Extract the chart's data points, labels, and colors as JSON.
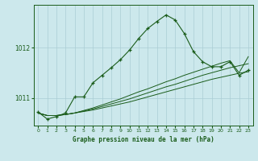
{
  "title": "Graphe pression niveau de la mer (hPa)",
  "bg_color": "#cce8ec",
  "grid_color": "#aacdd4",
  "line_color": "#1a5c1a",
  "x_ticks": [
    0,
    1,
    2,
    3,
    4,
    5,
    6,
    7,
    8,
    9,
    10,
    11,
    12,
    13,
    14,
    15,
    16,
    17,
    18,
    19,
    20,
    21,
    22,
    23
  ],
  "y_ticks": [
    1011,
    1012
  ],
  "ylim": [
    1010.45,
    1012.85
  ],
  "xlim": [
    -0.5,
    23.5
  ],
  "main_line": [
    1010.72,
    1010.58,
    1010.63,
    1010.7,
    1011.02,
    1011.02,
    1011.3,
    1011.45,
    1011.6,
    1011.76,
    1011.95,
    1012.18,
    1012.38,
    1012.52,
    1012.65,
    1012.55,
    1012.28,
    1011.92,
    1011.72,
    1011.62,
    1011.62,
    1011.72,
    1011.45,
    1011.55
  ],
  "flat1": [
    1010.7,
    1010.65,
    1010.65,
    1010.67,
    1010.7,
    1010.73,
    1010.76,
    1010.8,
    1010.84,
    1010.88,
    1010.92,
    1010.97,
    1011.02,
    1011.07,
    1011.12,
    1011.17,
    1011.22,
    1011.27,
    1011.32,
    1011.37,
    1011.41,
    1011.45,
    1011.49,
    1011.52
  ],
  "flat2": [
    1010.7,
    1010.65,
    1010.65,
    1010.67,
    1010.7,
    1010.74,
    1010.78,
    1010.83,
    1010.88,
    1010.93,
    1010.98,
    1011.04,
    1011.1,
    1011.16,
    1011.22,
    1011.27,
    1011.33,
    1011.39,
    1011.45,
    1011.5,
    1011.55,
    1011.6,
    1011.64,
    1011.68
  ],
  "flat3": [
    1010.7,
    1010.65,
    1010.65,
    1010.67,
    1010.7,
    1010.75,
    1010.8,
    1010.86,
    1010.92,
    1010.98,
    1011.05,
    1011.12,
    1011.18,
    1011.25,
    1011.32,
    1011.38,
    1011.45,
    1011.51,
    1011.57,
    1011.63,
    1011.69,
    1011.74,
    1011.5,
    1011.82
  ],
  "figsize": [
    3.2,
    2.0
  ],
  "dpi": 100
}
